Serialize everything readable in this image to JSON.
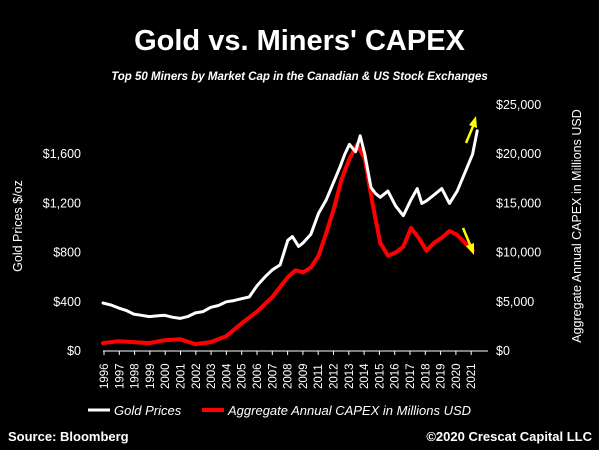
{
  "chart_data": {
    "type": "line",
    "title": "Gold vs. Miners' CAPEX",
    "subtitle": "Top 50 Miners by Market Cap in the Canadian & US Stock Exchanges",
    "ylabel_left": "Gold Prices $/oz",
    "ylabel_right": "Aggregate Annual CAPEX in Millions USD",
    "ylim_left": [
      0,
      2000
    ],
    "ylim_right": [
      0,
      25000
    ],
    "yticks_left": [
      "$0",
      "$400",
      "$800",
      "$1,200",
      "$1,600"
    ],
    "yticks_left_values": [
      0,
      400,
      800,
      1200,
      1600
    ],
    "yticks_right": [
      "$0",
      "$5,000",
      "$10,000",
      "$15,000",
      "$20,000",
      "$25,000"
    ],
    "yticks_right_values": [
      0,
      5000,
      10000,
      15000,
      20000,
      25000
    ],
    "xlim": [
      1996,
      2021
    ],
    "xticks": [
      "1996",
      "1997",
      "1998",
      "1999",
      "2000",
      "2001",
      "2002",
      "2003",
      "2004",
      "2005",
      "2006",
      "2007",
      "2008",
      "2009",
      "2011",
      "2012",
      "2013",
      "2014",
      "2015",
      "2016",
      "2017",
      "2018",
      "2019",
      "2020",
      "2021"
    ],
    "series": [
      {
        "name": "Gold Prices",
        "axis": "left",
        "color": "#ffffff",
        "x": [
          1996.0,
          1996.5,
          1997.0,
          1997.5,
          1998.0,
          1998.5,
          1999.0,
          1999.5,
          2000.0,
          2000.5,
          2001.0,
          2001.5,
          2002.0,
          2002.5,
          2003.0,
          2003.5,
          2004.0,
          2004.5,
          2005.0,
          2005.5,
          2006.0,
          2006.5,
          2007.0,
          2007.5,
          2008.0,
          2008.3,
          2008.7,
          2009.0,
          2009.5,
          2010.0,
          2010.5,
          2011.0,
          2011.4,
          2011.7,
          2012.0,
          2012.4,
          2012.7,
          2013.0,
          2013.4,
          2013.7,
          2014.0,
          2014.5,
          2015.0,
          2015.5,
          2016.0,
          2016.4,
          2016.7,
          2017.0,
          2017.5,
          2018.0,
          2018.5,
          2019.0,
          2019.5,
          2020.0,
          2020.3
        ],
        "values": [
          390,
          375,
          350,
          330,
          300,
          290,
          280,
          285,
          290,
          275,
          265,
          280,
          310,
          320,
          355,
          370,
          400,
          410,
          425,
          440,
          530,
          600,
          660,
          700,
          900,
          930,
          850,
          880,
          950,
          1120,
          1230,
          1380,
          1500,
          1600,
          1680,
          1620,
          1750,
          1600,
          1330,
          1280,
          1250,
          1300,
          1180,
          1100,
          1230,
          1320,
          1200,
          1220,
          1270,
          1320,
          1200,
          1300,
          1450,
          1600,
          1790
        ]
      },
      {
        "name": "Aggregate Annual CAPEX in Millions USD",
        "axis": "right",
        "color": "#ff0000",
        "x": [
          1996.0,
          1997.0,
          1998.0,
          1999.0,
          2000.0,
          2001.0,
          2002.0,
          2003.0,
          2004.0,
          2005.0,
          2006.0,
          2007.0,
          2008.0,
          2008.5,
          2009.0,
          2009.5,
          2010.0,
          2010.5,
          2011.0,
          2011.5,
          2012.0,
          2012.5,
          2013.0,
          2013.5,
          2014.0,
          2014.5,
          2015.0,
          2015.5,
          2016.0,
          2016.5,
          2017.0,
          2017.5,
          2018.0,
          2018.5,
          2019.0,
          2019.5,
          2020.0
        ],
        "values": [
          800,
          1000,
          900,
          800,
          1100,
          1200,
          700,
          900,
          1500,
          2800,
          4000,
          5500,
          7500,
          8200,
          8000,
          8500,
          9700,
          12000,
          14500,
          17500,
          19500,
          21000,
          19500,
          15000,
          11000,
          9700,
          10000,
          10600,
          12500,
          11500,
          10200,
          11000,
          11500,
          12200,
          11800,
          11000,
          10200
        ]
      }
    ],
    "legend_position": "bottom",
    "grid": false,
    "annotations": [
      "up-arrow-yellow",
      "down-arrow-yellow"
    ]
  },
  "footer": {
    "source": "Source: Bloomberg",
    "copyright": "©2020 Crescat Capital LLC"
  }
}
